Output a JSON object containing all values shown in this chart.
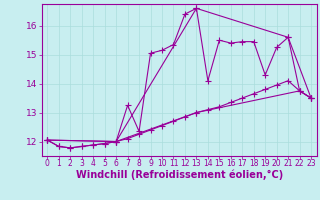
{
  "bg_color": "#c8eef0",
  "line_color": "#990099",
  "grid_color": "#aadddd",
  "xlabel": "Windchill (Refroidissement éolien,°C)",
  "ylabel_ticks": [
    12,
    13,
    14,
    15,
    16
  ],
  "xlim": [
    -0.5,
    23.5
  ],
  "ylim": [
    11.5,
    16.75
  ],
  "series1": [
    [
      0,
      12.05
    ],
    [
      1,
      11.83
    ],
    [
      2,
      11.78
    ],
    [
      3,
      11.83
    ],
    [
      4,
      11.88
    ],
    [
      5,
      11.93
    ],
    [
      6,
      12.0
    ],
    [
      7,
      13.25
    ],
    [
      8,
      12.35
    ],
    [
      9,
      15.05
    ],
    [
      10,
      15.15
    ],
    [
      11,
      15.35
    ],
    [
      12,
      16.4
    ],
    [
      13,
      16.6
    ],
    [
      14,
      14.1
    ],
    [
      15,
      15.5
    ],
    [
      16,
      15.4
    ],
    [
      17,
      15.45
    ],
    [
      18,
      15.45
    ],
    [
      19,
      14.3
    ],
    [
      20,
      15.25
    ],
    [
      21,
      15.6
    ],
    [
      22,
      13.75
    ],
    [
      23,
      13.5
    ]
  ],
  "series2": [
    [
      0,
      12.05
    ],
    [
      1,
      11.83
    ],
    [
      2,
      11.78
    ],
    [
      3,
      11.83
    ],
    [
      4,
      11.88
    ],
    [
      5,
      11.93
    ],
    [
      6,
      12.0
    ],
    [
      7,
      12.1
    ],
    [
      8,
      12.25
    ],
    [
      9,
      12.4
    ],
    [
      10,
      12.55
    ],
    [
      11,
      12.7
    ],
    [
      12,
      12.85
    ],
    [
      13,
      13.0
    ],
    [
      14,
      13.1
    ],
    [
      15,
      13.2
    ],
    [
      16,
      13.35
    ],
    [
      17,
      13.5
    ],
    [
      18,
      13.65
    ],
    [
      19,
      13.8
    ],
    [
      20,
      13.95
    ],
    [
      21,
      14.1
    ],
    [
      22,
      13.75
    ],
    [
      23,
      13.5
    ]
  ],
  "series3": [
    [
      0,
      12.05
    ],
    [
      6,
      12.0
    ],
    [
      13,
      16.6
    ],
    [
      21,
      15.6
    ],
    [
      23,
      13.5
    ]
  ],
  "series4": [
    [
      0,
      12.05
    ],
    [
      6,
      12.0
    ],
    [
      13,
      13.0
    ],
    [
      22,
      13.75
    ],
    [
      23,
      13.5
    ]
  ],
  "xtick_labels": [
    "0",
    "1",
    "2",
    "3",
    "4",
    "5",
    "6",
    "7",
    "8",
    "9",
    "10",
    "11",
    "12",
    "13",
    "14",
    "15",
    "16",
    "17",
    "18",
    "19",
    "20",
    "21",
    "22",
    "23"
  ],
  "marker": "+",
  "markersize": 4,
  "linewidth": 0.8,
  "xlabel_fontsize": 7.0,
  "ytick_fontsize": 6.5,
  "xtick_fontsize": 5.5
}
